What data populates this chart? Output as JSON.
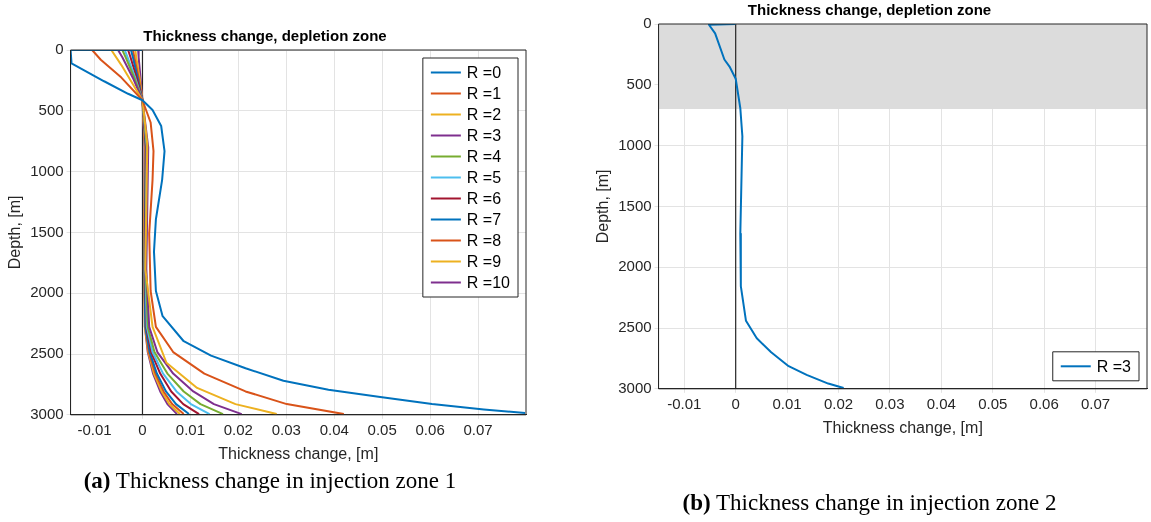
{
  "chart_data": [
    {
      "type": "line",
      "title": "Thickness change, depletion zone",
      "xlabel": "Thickness change, [m]",
      "ylabel": "Depth, [m]",
      "xlim": [
        -0.015,
        0.08
      ],
      "xticks": [
        -0.01,
        0,
        0.01,
        0.02,
        0.03,
        0.04,
        0.05,
        0.06,
        0.07
      ],
      "ylim": [
        3000,
        0
      ],
      "yticks": [
        0,
        500,
        1000,
        1500,
        2000,
        2500,
        3000
      ],
      "grid": true,
      "legend": "top right",
      "ref_lines": [
        {
          "axis": "x",
          "value": 0,
          "color": "#262626"
        }
      ],
      "annotations": [
        "(a) Thickness change in injection zone 1"
      ],
      "series": [
        {
          "name": "R =0",
          "color": "#0072bd",
          "x": [
            0,
            -0.015,
            -0.0148,
            -0.008,
            -0.003,
            0,
            0.0021,
            0.0039,
            0.0046,
            0.0041,
            0.0028,
            0.0024,
            0.0028,
            0.0042,
            0.0086,
            0.0143,
            0.0215,
            0.0294,
            0.0388,
            0.0496,
            0.0604,
            0.0712,
            0.0798
          ],
          "values": [
            0,
            0,
            109,
            257,
            360,
            413,
            493,
            625,
            832,
            1068,
            1392,
            1658,
            1982,
            2189,
            2395,
            2513,
            2617,
            2720,
            2794,
            2853,
            2912,
            2956,
            2985
          ]
        },
        {
          "name": "R =1",
          "color": "#d95319",
          "x": [
            0,
            -0.0105,
            -0.0087,
            -0.0044,
            0,
            0.0017,
            0.0023,
            0.0021,
            0.0014,
            0.0017,
            0.0028,
            0.0064,
            0.0129,
            0.0215,
            0.0301,
            0.042
          ],
          "values": [
            0,
            0,
            80,
            227,
            413,
            596,
            832,
            1068,
            1510,
            1982,
            2277,
            2484,
            2661,
            2808,
            2912,
            2994
          ]
        },
        {
          "name": "R =2",
          "color": "#edb120",
          "x": [
            0,
            -0.0065,
            -0.0044,
            0,
            0.001,
            0.0006,
            0.0021,
            0.005,
            0.0114,
            0.0194,
            0.028
          ],
          "values": [
            0,
            0,
            124,
            413,
            773,
            1805,
            2277,
            2572,
            2779,
            2912,
            2994
          ]
        },
        {
          "name": "R =3",
          "color": "#7e2f8e",
          "x": [
            0,
            -0.0051,
            -0.0042,
            -0.002,
            0,
            0.0012,
            0.0008,
            0.0014,
            0.0031,
            0.0064,
            0.0106,
            0.0149,
            0.0207
          ],
          "values": [
            0,
            0,
            60,
            230,
            413,
            800,
            1800,
            2277,
            2484,
            2661,
            2808,
            2912,
            2994
          ]
        },
        {
          "name": "R =4",
          "color": "#77ac30",
          "x": [
            0,
            -0.0042,
            -0.0035,
            -0.0017,
            0,
            0.001,
            0.0007,
            0.0011,
            0.0025,
            0.0052,
            0.0086,
            0.0121,
            0.0168
          ],
          "values": [
            0,
            0,
            60,
            230,
            413,
            800,
            1800,
            2277,
            2484,
            2661,
            2808,
            2912,
            2994
          ]
        },
        {
          "name": "R =5",
          "color": "#4dbeee",
          "x": [
            0,
            -0.0037,
            -0.0031,
            -0.0015,
            0,
            0.0009,
            0.0006,
            0.0009,
            0.0021,
            0.0043,
            0.0071,
            0.0101,
            0.014
          ],
          "values": [
            0,
            0,
            60,
            230,
            413,
            800,
            1800,
            2277,
            2484,
            2661,
            2808,
            2912,
            2994
          ]
        },
        {
          "name": "R =6",
          "color": "#a2142f",
          "x": [
            0,
            -0.003,
            -0.0025,
            -0.0012,
            0,
            0.0008,
            0.0005,
            0.0008,
            0.0018,
            0.0037,
            0.006,
            0.0085,
            0.0118
          ],
          "values": [
            0,
            0,
            60,
            230,
            413,
            800,
            1800,
            2277,
            2484,
            2661,
            2808,
            2912,
            2994
          ]
        },
        {
          "name": "R =7",
          "color": "#0072bd",
          "x": [
            0,
            -0.0024,
            -0.002,
            -0.001,
            0,
            0.0007,
            0.0004,
            0.0006,
            0.0015,
            0.003,
            0.0049,
            0.007,
            0.0097
          ],
          "values": [
            0,
            0,
            60,
            230,
            413,
            800,
            1800,
            2277,
            2484,
            2661,
            2808,
            2912,
            2994
          ]
        },
        {
          "name": "R =8",
          "color": "#d95319",
          "x": [
            0,
            -0.002,
            -0.0017,
            -0.0008,
            0,
            0.0006,
            0.0004,
            0.0006,
            0.0013,
            0.0027,
            0.0044,
            0.0062,
            0.0086
          ],
          "values": [
            0,
            0,
            60,
            230,
            413,
            800,
            1800,
            2277,
            2484,
            2661,
            2808,
            2912,
            2994
          ]
        },
        {
          "name": "R =9",
          "color": "#edb120",
          "x": [
            0,
            -0.0015,
            -0.0013,
            -0.0006,
            0,
            0.0005,
            0.0003,
            0.0005,
            0.0012,
            0.0024,
            0.004,
            0.0056,
            0.0078
          ],
          "values": [
            0,
            0,
            60,
            230,
            413,
            800,
            1800,
            2277,
            2484,
            2661,
            2808,
            2912,
            2994
          ]
        },
        {
          "name": "R =10",
          "color": "#7e2f8e",
          "x": [
            0,
            -0.0009,
            -0.0008,
            -0.0004,
            0,
            0.0004,
            0.0003,
            0.0005,
            0.0011,
            0.0022,
            0.0037,
            0.0052,
            0.0072
          ],
          "values": [
            0,
            0,
            60,
            230,
            413,
            800,
            1800,
            2277,
            2484,
            2661,
            2808,
            2912,
            2994
          ]
        }
      ]
    },
    {
      "type": "line",
      "title": "Thickness change, depletion zone",
      "xlabel": "Thickness change, [m]",
      "ylabel": "Depth, [m]",
      "xlim": [
        -0.015,
        0.08
      ],
      "xticks": [
        -0.01,
        0,
        0.01,
        0.02,
        0.03,
        0.04,
        0.05,
        0.06,
        0.07
      ],
      "ylim": [
        3000,
        0
      ],
      "yticks": [
        0,
        500,
        1000,
        1500,
        2000,
        2500,
        3000
      ],
      "grid": true,
      "legend": "bottom right",
      "bands": [
        {
          "axis": "y",
          "from": 0,
          "to": 700,
          "color": "#dcdcdc"
        }
      ],
      "ref_lines": [
        {
          "axis": "x",
          "value": 0,
          "color": "#262626"
        }
      ],
      "annotations": [
        "(b) Thickness change in injection zone 2"
      ],
      "series": [
        {
          "name": "R =3",
          "color": "#0072bd",
          "x": [
            0,
            -0.0052,
            -0.004,
            -0.0022,
            -0.0012,
            0,
            0.0009,
            0.0013,
            0.0009,
            0.001,
            0.002,
            0.0041,
            0.0069,
            0.0103,
            0.0138,
            0.018,
            0.021
          ],
          "values": [
            0,
            6,
            77,
            292,
            350,
            450,
            693,
            923,
            1725,
            2155,
            2441,
            2585,
            2699,
            2814,
            2885,
            2957,
            2994
          ]
        }
      ]
    }
  ]
}
